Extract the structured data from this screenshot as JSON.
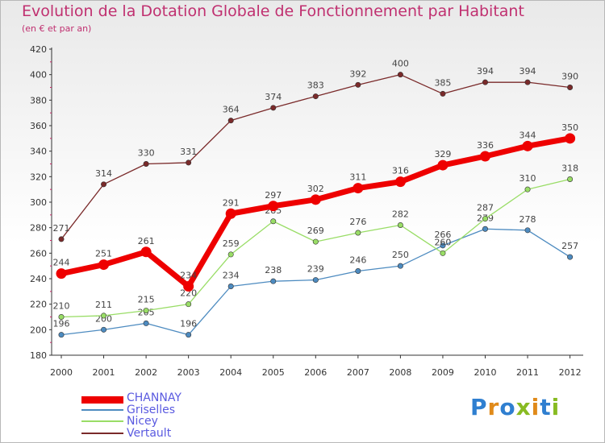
{
  "title": "Evolution de la Dotation Globale de Fonctionnement par Habitant",
  "subtitle": "(en € et par an)",
  "logo": "Proxiti",
  "chart_data": {
    "type": "line",
    "x": [
      "2000",
      "2001",
      "2002",
      "2003",
      "2004",
      "2005",
      "2006",
      "2007",
      "2008",
      "2009",
      "2010",
      "2011",
      "2012"
    ],
    "ylim": [
      180,
      420
    ],
    "yticks": [
      "180",
      "200",
      "220",
      "240",
      "260",
      "280",
      "300",
      "320",
      "340",
      "360",
      "380",
      "400",
      "420"
    ],
    "grid": false,
    "legend_position": "bottom-left",
    "series": [
      {
        "name": "CHANNAY",
        "color": "#ee0000",
        "values": [
          244,
          251,
          261,
          234,
          291,
          297,
          302,
          311,
          316,
          329,
          336,
          344,
          350
        ]
      },
      {
        "name": "Griselles",
        "color": "#4d8bc0",
        "values": [
          196,
          200,
          205,
          196,
          234,
          238,
          239,
          246,
          250,
          266,
          279,
          278,
          257
        ]
      },
      {
        "name": "Nicey",
        "color": "#99dd66",
        "values": [
          210,
          211,
          215,
          220,
          259,
          285,
          269,
          276,
          282,
          260,
          287,
          310,
          318
        ]
      },
      {
        "name": "Vertault",
        "color": "#7a2a2a",
        "values": [
          271,
          314,
          330,
          331,
          364,
          374,
          383,
          392,
          400,
          385,
          394,
          394,
          390
        ]
      }
    ]
  }
}
